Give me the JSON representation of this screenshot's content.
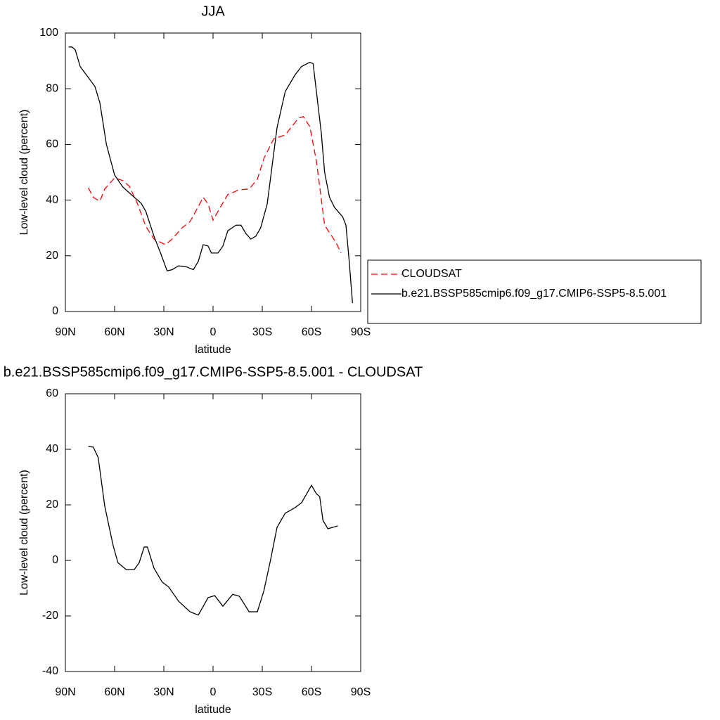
{
  "chart_data": [
    {
      "type": "line",
      "title": "JJA",
      "xlabel": "latitude",
      "ylabel": "Low-level cloud (percent)",
      "xlim": [
        90,
        -90
      ],
      "ylim": [
        0,
        100
      ],
      "xticks": [
        {
          "value": 90,
          "label": "90N"
        },
        {
          "value": 60,
          "label": "60N"
        },
        {
          "value": 30,
          "label": "30N"
        },
        0,
        {
          "value": -30,
          "label": "30S"
        },
        {
          "value": -60,
          "label": "60S"
        },
        {
          "value": -90,
          "label": "90S"
        }
      ],
      "yticks": [
        0,
        20,
        40,
        60,
        80,
        100
      ],
      "legend": "right",
      "series": [
        {
          "name": "CLOUDSAT",
          "color": "#ff0000",
          "dash": true,
          "x": [
            76,
            73,
            69,
            66,
            60,
            55,
            51,
            46,
            41,
            36,
            29,
            25,
            19,
            14,
            10,
            6,
            3,
            0,
            -4,
            -9,
            -16,
            -22,
            -27,
            -31,
            -37,
            -44,
            -48,
            -52,
            -55,
            -59,
            -63,
            -68,
            -75,
            -78
          ],
          "values": [
            44.4,
            41,
            39.6,
            44,
            48,
            47,
            45,
            38.6,
            30.6,
            26,
            24,
            26,
            30,
            32.3,
            36.6,
            41,
            38.6,
            32.8,
            37,
            42,
            43.7,
            44,
            47.5,
            55,
            62,
            63.4,
            66.4,
            69.4,
            70,
            66.4,
            54,
            31,
            24.7,
            21
          ]
        },
        {
          "name": "b.e21.BSSP585cmip6.f09_g17.CMIP6-SSP5-8.5.001",
          "color": "#000000",
          "dash": false,
          "x": [
            88,
            86,
            84,
            81,
            76,
            72,
            69,
            65,
            60,
            55,
            48,
            44,
            41,
            36,
            32,
            28,
            25,
            21,
            16,
            12,
            9,
            6,
            3,
            1,
            -3,
            -6,
            -9,
            -14,
            -17,
            -20,
            -23,
            -26,
            -29,
            -33,
            -39,
            -44,
            -50,
            -54,
            -59,
            -61,
            -63,
            -66,
            -68,
            -71,
            -74,
            -79,
            -81,
            -83,
            -85
          ],
          "values": [
            95,
            95,
            94,
            88,
            84,
            80.8,
            75,
            60,
            49,
            44.7,
            41,
            39,
            36,
            27,
            21,
            14.6,
            15,
            16.4,
            16,
            15,
            18,
            24,
            23.5,
            21,
            21,
            23.5,
            29,
            31,
            31,
            28,
            26,
            27,
            30,
            38.6,
            66,
            79,
            85,
            88,
            89.5,
            89,
            79,
            64,
            50,
            41,
            37.4,
            34,
            31,
            18,
            3
          ]
        }
      ]
    },
    {
      "type": "line",
      "title": "b.e21.BSSP585cmip6.f09_g17.CMIP6-SSP5-8.5.001 - CLOUDSAT",
      "xlabel": "latitude",
      "ylabel": "Low-level cloud (percent)",
      "xlim": [
        90,
        -90
      ],
      "ylim": [
        -40,
        60
      ],
      "xticks": [
        {
          "value": 90,
          "label": "90N"
        },
        {
          "value": 60,
          "label": "60N"
        },
        {
          "value": 30,
          "label": "30N"
        },
        0,
        {
          "value": -30,
          "label": "30S"
        },
        {
          "value": -60,
          "label": "60S"
        },
        {
          "value": -90,
          "label": "90S"
        }
      ],
      "yticks": [
        -40,
        -20,
        0,
        20,
        40,
        60
      ],
      "series": [
        {
          "color": "#000000",
          "dash": false,
          "x": [
            76,
            73,
            70,
            66,
            61,
            58,
            53,
            48,
            45,
            42,
            40,
            36,
            31,
            27,
            21,
            14,
            9,
            3,
            -1,
            -6,
            -12,
            -16,
            -22,
            -27,
            -31,
            -35,
            -39,
            -44,
            -50,
            -54,
            -60,
            -63,
            -65,
            -67,
            -70,
            -76
          ],
          "values": [
            41,
            40.8,
            37,
            19.5,
            5.6,
            -0.8,
            -3.3,
            -3.3,
            -0.8,
            4.8,
            4.8,
            -2.8,
            -7.8,
            -9.6,
            -14.7,
            -18.5,
            -19.7,
            -13.4,
            -12.7,
            -16.5,
            -12.2,
            -12.9,
            -18.5,
            -18.5,
            -10.9,
            0,
            11.9,
            17,
            19,
            20.8,
            27,
            24,
            23,
            14.4,
            11.4,
            12.4
          ]
        }
      ]
    }
  ]
}
